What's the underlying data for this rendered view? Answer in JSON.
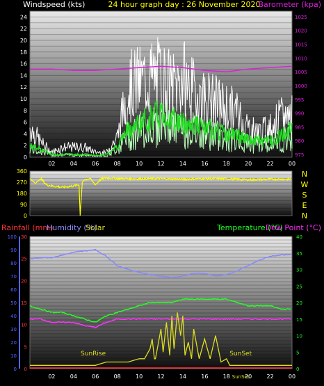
{
  "colors": {
    "wind_title": "#ffffff",
    "graph_title": "#ffff00",
    "barometer": "#dd22dd",
    "wind_gust": "#ffffff",
    "wind_avg": "#22dd22",
    "direction": "#ffff00",
    "rain": "#ff3333",
    "humidity": "#8888ff",
    "solar": "#dddd22",
    "temperature": "#22ff22",
    "dewpoint": "#ff33ff",
    "left_axis_blue": "#5566ff"
  },
  "chart_data": [
    {
      "type": "line",
      "name": "wind",
      "title_left": "Windspeed (kts)",
      "title_center": "24 hour graph day : 26 November 2020",
      "title_right": "Barometer (kpa)",
      "x_ticks": [
        "02",
        "04",
        "06",
        "08",
        "10",
        "12",
        "14",
        "16",
        "18",
        "20",
        "22",
        "00"
      ],
      "x_range": [
        0,
        24
      ],
      "y_left_ticks": [
        "0",
        "2",
        "4",
        "6",
        "8",
        "10",
        "12",
        "14",
        "16",
        "18",
        "20",
        "22",
        "24"
      ],
      "y_left_range": [
        0,
        25
      ],
      "y_right_ticks": [
        "975",
        "980",
        "985",
        "990",
        "995",
        "1000",
        "1005",
        "1010",
        "1015",
        "1020",
        "1025"
      ],
      "y_right_range": [
        974,
        1027
      ],
      "series": [
        {
          "name": "Barometer",
          "x": [
            0,
            2,
            4,
            6,
            8,
            10,
            12,
            14,
            16,
            18,
            20,
            22,
            24
          ],
          "y": [
            1006,
            1006,
            1005.5,
            1005.5,
            1006,
            1006.5,
            1007,
            1006.5,
            1005.5,
            1005,
            1006,
            1006.5,
            1007
          ]
        },
        {
          "name": "Gust",
          "x": [
            0,
            1,
            2,
            3,
            4,
            5,
            6,
            7,
            8,
            9,
            10,
            11,
            12,
            13,
            14,
            15,
            16,
            17,
            18,
            19,
            20,
            21,
            22,
            23,
            24
          ],
          "y": [
            6,
            3,
            1,
            2,
            2,
            2,
            1,
            1,
            4,
            14,
            15,
            16,
            16,
            14,
            16,
            13,
            12,
            11,
            10,
            9,
            6,
            5,
            6,
            8,
            9
          ]
        },
        {
          "name": "Average",
          "x": [
            0,
            1,
            2,
            3,
            4,
            5,
            6,
            7,
            8,
            9,
            10,
            11,
            12,
            13,
            14,
            15,
            16,
            17,
            18,
            19,
            20,
            21,
            22,
            23,
            24
          ],
          "y": [
            2,
            1.5,
            0.5,
            0.5,
            0.5,
            0.5,
            0.3,
            0.5,
            2,
            5,
            6,
            7,
            8,
            7,
            6,
            6,
            5,
            5,
            4,
            4,
            3,
            3,
            3,
            4,
            5
          ]
        }
      ]
    },
    {
      "type": "line",
      "name": "direction",
      "x_range": [
        0,
        24
      ],
      "y_ticks": [
        "0",
        "90",
        "180",
        "270",
        "360"
      ],
      "y_range": [
        0,
        360
      ],
      "compass": [
        "N",
        "W",
        "S",
        "E",
        "N"
      ],
      "series": [
        {
          "name": "Direction",
          "x": [
            0,
            0.5,
            1,
            1.5,
            2,
            3,
            4,
            4.5,
            4.6,
            4.8,
            5,
            5.5,
            6,
            6.5,
            7,
            8,
            10,
            12,
            14,
            16,
            18,
            20,
            22,
            24
          ],
          "y": [
            300,
            260,
            300,
            250,
            240,
            230,
            240,
            250,
            0,
            270,
            290,
            300,
            250,
            295,
            305,
            300,
            298,
            300,
            295,
            300,
            298,
            290,
            295,
            295
          ]
        }
      ]
    },
    {
      "type": "line",
      "name": "rain-humidity-temperature",
      "left_title_rain": "Rainfall (mm)",
      "left_title_humidity": "Humidity (%)",
      "left_title_solar": "Solar",
      "right_title_temp": "Temperature (°C)",
      "right_title_dew": "Dew Point (°C)",
      "x_range": [
        0,
        24
      ],
      "y_left_humidity_ticks": [
        "0",
        "10",
        "20",
        "30",
        "40",
        "50",
        "60",
        "70",
        "80",
        "90",
        "100"
      ],
      "y_left_humidity_range": [
        0,
        100
      ],
      "y_left_rain_ticks": [
        "0",
        "5",
        "10",
        "15",
        "20",
        "25",
        "30"
      ],
      "y_left_rain_range": [
        0,
        30
      ],
      "y_right_ticks": [
        "0",
        "5",
        "10",
        "15",
        "20",
        "25",
        "30",
        "35",
        "40"
      ],
      "y_right_range": [
        0,
        40
      ],
      "annotations": [
        "SunRise",
        "SunSet",
        "SunSet"
      ],
      "series": [
        {
          "name": "Humidity",
          "x": [
            0,
            1,
            2,
            3,
            4,
            5,
            6,
            7,
            8,
            9,
            10,
            11,
            12,
            13,
            14,
            15,
            16,
            17,
            18,
            19,
            20,
            21,
            22,
            23,
            24
          ],
          "y": [
            83,
            84,
            84,
            86,
            88,
            89,
            90,
            85,
            78,
            75,
            73,
            71,
            70,
            69,
            70,
            72,
            72,
            70,
            71,
            74,
            78,
            82,
            85,
            86,
            86
          ]
        },
        {
          "name": "Temperature",
          "x": [
            0,
            1,
            2,
            3,
            4,
            5,
            6,
            7,
            8,
            9,
            10,
            11,
            12,
            13,
            14,
            15,
            16,
            17,
            18,
            19,
            20,
            21,
            22,
            23,
            24
          ],
          "y": [
            19,
            18,
            17,
            17,
            16,
            15,
            14,
            16,
            17,
            18,
            19,
            20,
            20,
            20,
            21,
            21,
            21,
            21,
            21,
            20,
            19,
            19,
            19,
            18,
            18
          ]
        },
        {
          "name": "Dew Point",
          "x": [
            0,
            1,
            2,
            3,
            4,
            5,
            6,
            7,
            8,
            9,
            10,
            11,
            12,
            13,
            14,
            15,
            16,
            17,
            18,
            19,
            20,
            21,
            22,
            23,
            24
          ],
          "y": [
            15,
            15,
            14,
            14,
            14,
            13,
            12.5,
            14,
            15,
            15,
            15,
            15,
            15,
            15,
            15,
            15,
            15,
            15,
            15,
            15,
            15,
            15,
            15,
            15,
            15
          ]
        },
        {
          "name": "Rainfall",
          "x": [
            0,
            24
          ],
          "y": [
            0,
            0
          ]
        },
        {
          "name": "Solar",
          "x": [
            0,
            6,
            6.5,
            7,
            8,
            9,
            10,
            10.5,
            11,
            11.2,
            11.4,
            11.5,
            12,
            12.2,
            12.5,
            12.8,
            13,
            13.2,
            13.5,
            13.8,
            14,
            14.2,
            14.5,
            14.8,
            15,
            15.5,
            16,
            16.5,
            17,
            17.5,
            18,
            18.3,
            19,
            24
          ],
          "y": [
            1,
            1,
            1.5,
            2,
            2,
            2,
            3,
            3,
            6,
            9,
            3,
            3,
            12,
            5,
            14,
            4,
            16,
            6,
            17,
            10,
            16,
            4,
            8,
            3,
            12,
            3,
            9,
            3,
            10,
            2,
            3,
            1,
            1,
            1
          ]
        }
      ]
    }
  ],
  "axis_titles": {
    "wind_left": "Windspeed (kts)",
    "graph_day": "24 hour graph day : 26 November 2020",
    "baro_right": "Barometer (kpa)"
  },
  "compass": [
    "N",
    "W",
    "S",
    "E",
    "N"
  ]
}
